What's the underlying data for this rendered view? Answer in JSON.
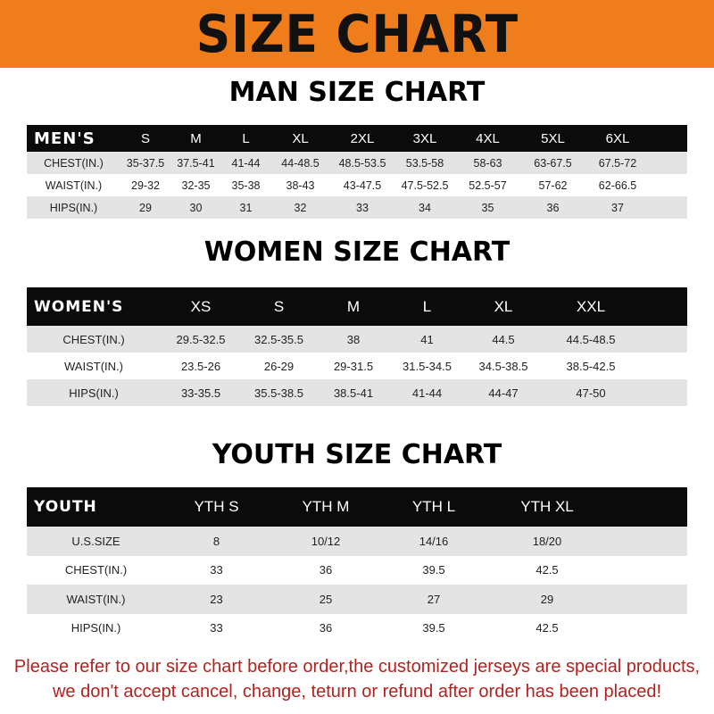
{
  "banner": {
    "title": "SIZE CHART",
    "color": "#f07d1c"
  },
  "men": {
    "title": "MAN SIZE CHART",
    "header": [
      "MEN'S",
      "S",
      "M",
      "L",
      "XL",
      "2XL",
      "3XL",
      "4XL",
      "5XL",
      "6XL"
    ],
    "rows": [
      [
        "CHEST(IN.)",
        "35-37.5",
        "37.5-41",
        "41-44",
        "44-48.5",
        "48.5-53.5",
        "53.5-58",
        "58-63",
        "63-67.5",
        "67.5-72"
      ],
      [
        "WAIST(IN.)",
        "29-32",
        "32-35",
        "35-38",
        "38-43",
        "43-47.5",
        "47.5-52.5",
        "52.5-57",
        "57-62",
        "62-66.5"
      ],
      [
        "HIPS(IN.)",
        "29",
        "30",
        "31",
        "32",
        "33",
        "34",
        "35",
        "36",
        "37"
      ]
    ]
  },
  "women": {
    "title": "WOMEN SIZE CHART",
    "header": [
      "WOMEN'S",
      "XS",
      "S",
      "M",
      "L",
      "XL",
      "XXL"
    ],
    "rows": [
      [
        "CHEST(IN.)",
        "29.5-32.5",
        "32.5-35.5",
        "38",
        "41",
        "44.5",
        "44.5-48.5"
      ],
      [
        "WAIST(IN.)",
        "23.5-26",
        "26-29",
        "29-31.5",
        "31.5-34.5",
        "34.5-38.5",
        "38.5-42.5"
      ],
      [
        "HIPS(IN.)",
        "33-35.5",
        "35.5-38.5",
        "38.5-41",
        "41-44",
        "44-47",
        "47-50"
      ]
    ]
  },
  "youth": {
    "title": "YOUTH SIZE CHART",
    "header": [
      "YOUTH",
      "YTH S",
      "YTH M",
      "YTH L",
      "YTH XL"
    ],
    "rows": [
      [
        "U.S.SIZE",
        "8",
        "10/12",
        "14/16",
        "18/20"
      ],
      [
        "CHEST(IN.)",
        "33",
        "36",
        "39.5",
        "42.5"
      ],
      [
        "WAIST(IN.)",
        "23",
        "25",
        "27",
        "29"
      ],
      [
        "HIPS(IN.)",
        "33",
        "36",
        "39.5",
        "42.5"
      ]
    ]
  },
  "notice": {
    "line1": "Please refer to our size chart before order,the customized jerseys are special products,",
    "line2": "we don't accept cancel, change, teturn or refund after order has been placed!"
  }
}
